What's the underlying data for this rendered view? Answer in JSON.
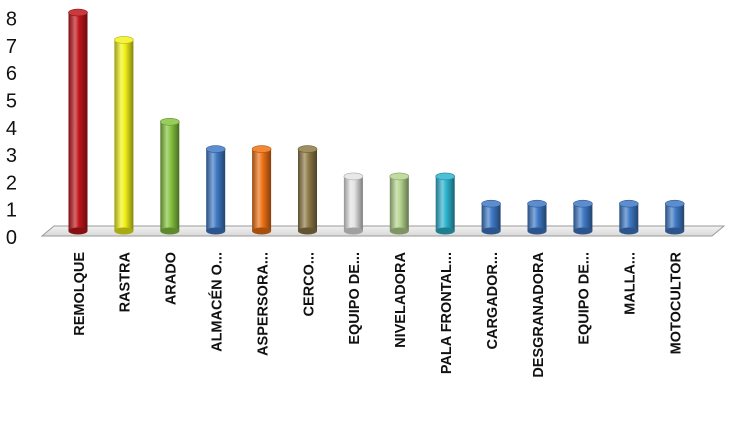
{
  "chart_data": {
    "type": "bar",
    "title": "",
    "xlabel": "",
    "ylabel": "",
    "ylim": [
      0,
      8
    ],
    "yticks": [
      0,
      1,
      2,
      3,
      4,
      5,
      6,
      7,
      8
    ],
    "grid": false,
    "legend": "none",
    "categories": [
      "REMOLQUE",
      "RASTRA",
      "ARADO",
      "ALMACÉN O...",
      "ASPERSORA...",
      "CERCO...",
      "EQUIPO DE...",
      "NIVELADORA",
      "PALA FRONTAL...",
      "CARGADOR...",
      "DESGRANADORA",
      "EQUIPO DE...",
      "MALLA...",
      "MOTOCULTOR"
    ],
    "values": [
      8,
      7,
      4,
      3,
      3,
      3,
      2,
      2,
      2,
      1,
      1,
      1,
      1,
      1
    ],
    "bar_colors": [
      "#c0161b",
      "#f2f21a",
      "#86c440",
      "#3f7ac6",
      "#ee7214",
      "#8e7a46",
      "#e4e4e4",
      "#b5d58f",
      "#2eb4cf",
      "#3f7ac6",
      "#3f7ac6",
      "#3f7ac6",
      "#3f7ac6",
      "#3f7ac6"
    ],
    "bar_style": "3d-cylinder"
  }
}
